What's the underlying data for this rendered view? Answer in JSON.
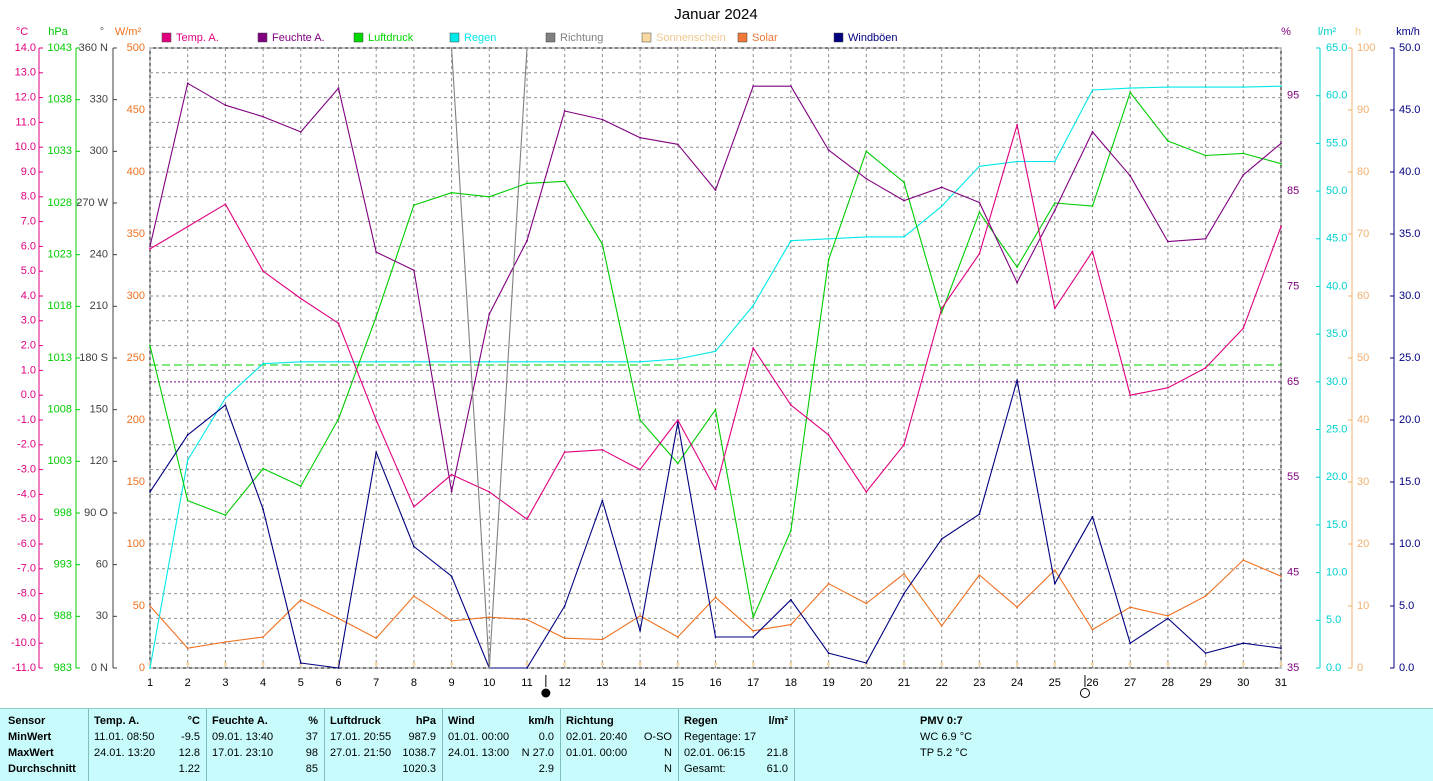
{
  "title": "Januar 2024",
  "units": {
    "temp": "°C",
    "hpa": "hPa",
    "deg": "°",
    "wm2": "W/m²",
    "pct": "%",
    "lm2": "l/m²",
    "h": "h",
    "kmh": "km/h"
  },
  "legend": [
    {
      "label": "Temp. A.",
      "color": "#e0007f"
    },
    {
      "label": "Feuchte A.",
      "color": "#800080"
    },
    {
      "label": "Luftdruck",
      "color": "#00d800"
    },
    {
      "label": "Regen",
      "color": "#00e8e8"
    },
    {
      "label": "Richtung",
      "color": "#808080"
    },
    {
      "label": "Sonnenschein",
      "color": "#f8d8a0"
    },
    {
      "label": "Solar",
      "color": "#f07838"
    },
    {
      "label": "Windböen",
      "color": "#000080"
    }
  ],
  "colors": {
    "temp": "#e0007f",
    "hpa": "#00cc00",
    "deg": "#606060",
    "wm2": "#f07020",
    "pct": "#800080",
    "lm2": "#00d0d0",
    "h": "#f8c880",
    "kmh": "#000080",
    "grid": "#909090"
  },
  "axes": {
    "temp": [
      "14.0",
      "13.0",
      "12.0",
      "11.0",
      "10.0",
      "9.0",
      "8.0",
      "7.0",
      "6.0",
      "5.0",
      "4.0",
      "3.0",
      "2.0",
      "1.0",
      "0.0",
      "-1.0",
      "-2.0",
      "-3.0",
      "-4.0",
      "-5.0",
      "-6.0",
      "-7.0",
      "-8.0",
      "-9.0",
      "-10.0",
      "-11.0"
    ],
    "hpa": [
      "1043",
      "1038",
      "1033",
      "1028",
      "1023",
      "1018",
      "1013",
      "1008",
      "1003",
      "998",
      "993",
      "988",
      "983"
    ],
    "deg": [
      "360 N",
      "330",
      "300",
      "270 W",
      "240",
      "210",
      "180 S",
      "150",
      "120",
      "90 O",
      "60",
      "30",
      "0 N"
    ],
    "wm2": [
      "500",
      "450",
      "400",
      "350",
      "300",
      "250",
      "200",
      "150",
      "100",
      "50",
      "0"
    ],
    "pct": [
      "95",
      "85",
      "75",
      "65",
      "55",
      "45",
      "35"
    ],
    "lm2": [
      "65.0",
      "60.0",
      "55.0",
      "50.0",
      "45.0",
      "40.0",
      "35.0",
      "30.0",
      "25.0",
      "20.0",
      "15.0",
      "10.0",
      "5.0",
      "0.0"
    ],
    "h": [
      "100",
      "90",
      "80",
      "70",
      "60",
      "50",
      "40",
      "30",
      "20",
      "10",
      "0"
    ],
    "kmh": [
      "50.0",
      "45.0",
      "40.0",
      "35.0",
      "30.0",
      "25.0",
      "20.0",
      "15.0",
      "10.0",
      "5.0",
      "0.0"
    ],
    "days": [
      "1",
      "2",
      "3",
      "4",
      "5",
      "6",
      "7",
      "8",
      "9",
      "10",
      "11",
      "12",
      "13",
      "14",
      "15",
      "16",
      "17",
      "18",
      "19",
      "20",
      "21",
      "22",
      "23",
      "24",
      "25",
      "26",
      "27",
      "28",
      "29",
      "30",
      "31"
    ]
  },
  "chart_data": {
    "type": "line",
    "title": "Januar 2024",
    "x": [
      1,
      2,
      3,
      4,
      5,
      6,
      7,
      8,
      9,
      10,
      11,
      12,
      13,
      14,
      15,
      16,
      17,
      18,
      19,
      20,
      21,
      22,
      23,
      24,
      25,
      26,
      27,
      28,
      29,
      30,
      31
    ],
    "series": [
      {
        "name": "Temp. A.",
        "unit": "°C",
        "axis": "temp",
        "values": [
          5.9,
          6.8,
          7.7,
          5.0,
          3.9,
          2.9,
          -1.0,
          -4.5,
          -3.2,
          -3.9,
          -5.0,
          -2.3,
          -2.2,
          -3.0,
          -1.0,
          -3.8,
          1.9,
          -0.4,
          -1.6,
          -3.9,
          -2.0,
          3.5,
          5.7,
          10.9,
          3.5,
          5.8,
          0.0,
          0.3,
          1.1,
          2.7,
          6.8
        ]
      },
      {
        "name": "Feuchte A.",
        "unit": "%",
        "axis": "pct",
        "values": [
          79.2,
          96.3,
          94.0,
          92.8,
          91.2,
          95.8,
          78.6,
          76.7,
          53.5,
          72.1,
          79.8,
          93.4,
          92.5,
          90.6,
          89.9,
          85.1,
          96.0,
          96.0,
          89.3,
          86.3,
          84.0,
          85.4,
          83.8,
          75.4,
          83.0,
          91.2,
          86.6,
          79.7,
          80.0,
          86.7,
          90.0
        ]
      },
      {
        "name": "Luftdruck",
        "unit": "hPa",
        "axis": "hpa",
        "values": [
          1014.2,
          999.2,
          997.8,
          1002.3,
          1000.6,
          1007.1,
          1017.0,
          1027.8,
          1029.0,
          1028.6,
          1029.9,
          1030.1,
          1024.0,
          1007.0,
          1002.8,
          1008.0,
          987.9,
          996.3,
          1022.5,
          1033.0,
          1030.0,
          1017.4,
          1027.1,
          1021.8,
          1028.0,
          1027.7,
          1038.7,
          1034.0,
          1032.6,
          1032.8,
          1031.8
        ]
      },
      {
        "name": "Regen",
        "unit": "l/m²",
        "axis": "lm2",
        "values": [
          0.0,
          21.8,
          28.3,
          31.9,
          32.1,
          32.1,
          32.1,
          32.1,
          32.1,
          32.1,
          32.1,
          32.1,
          32.1,
          32.1,
          32.4,
          33.2,
          38.0,
          44.8,
          45.0,
          45.2,
          45.2,
          48.4,
          52.6,
          53.1,
          53.1,
          60.6,
          60.8,
          60.9,
          60.9,
          60.9,
          61.0
        ]
      },
      {
        "name": "Richtung",
        "unit": "°",
        "axis": "deg",
        "values": [
          null,
          null,
          null,
          null,
          null,
          null,
          null,
          null,
          360,
          0,
          360,
          null,
          null,
          null,
          null,
          null,
          null,
          null,
          null,
          null,
          null,
          null,
          null,
          null,
          null,
          null,
          null,
          null,
          null,
          null,
          null
        ]
      },
      {
        "name": "Solar",
        "unit": "W/m²",
        "axis": "wm2",
        "values": [
          50,
          16,
          21,
          25,
          55,
          40,
          24,
          58,
          38,
          41,
          39,
          24,
          23,
          42,
          25,
          57,
          30,
          35,
          68,
          52,
          76,
          34,
          75,
          49,
          79,
          31,
          49,
          42,
          58,
          87,
          74
        ]
      },
      {
        "name": "Windböen",
        "unit": "km/h",
        "axis": "kmh",
        "values": [
          14.2,
          18.8,
          21.2,
          12.8,
          0.4,
          0.0,
          17.4,
          9.8,
          7.4,
          0.0,
          0.0,
          5.0,
          13.5,
          3.0,
          19.8,
          2.5,
          2.5,
          5.5,
          1.2,
          0.4,
          6.0,
          10.4,
          12.4,
          23.2,
          6.8,
          12.2,
          2.0,
          4.0,
          1.2,
          2.0,
          1.6
        ]
      }
    ],
    "reference_lines": [
      {
        "axis": "temp",
        "value": 1.22
      },
      {
        "axis": "pct",
        "value": 65
      }
    ],
    "markers": {
      "new_moon_day": 11.5,
      "full_moon_day": 25.8
    }
  },
  "stats": {
    "sensor": {
      "title": "Sensor",
      "rows": [
        "MinWert",
        "MaxWert",
        "Durchschnitt"
      ]
    },
    "temp": {
      "title": "Temp. A.",
      "unit": "°C",
      "rows": [
        [
          "11.01.  08:50",
          "-9.5"
        ],
        [
          "24.01.  13:20",
          "12.8"
        ],
        [
          "",
          "1.22"
        ]
      ]
    },
    "hum": {
      "title": "Feuchte A.",
      "unit": "%",
      "rows": [
        [
          "09.01.  13:40",
          "37"
        ],
        [
          "17.01.  23:10",
          "98"
        ],
        [
          "",
          "85"
        ]
      ]
    },
    "press": {
      "title": "Luftdruck",
      "unit": "hPa",
      "rows": [
        [
          "17.01.  20:55",
          "987.9"
        ],
        [
          "27.01.  21:50",
          "1038.7"
        ],
        [
          "",
          "1020.3"
        ]
      ]
    },
    "wind": {
      "title": "Wind",
      "unit": "km/h",
      "rows": [
        [
          "01.01.  00:00",
          "0.0"
        ],
        [
          "24.01.  13:00",
          "N 27.0"
        ],
        [
          "",
          "2.9"
        ]
      ]
    },
    "dir": {
      "title": "Richtung",
      "unit": "",
      "rows": [
        [
          "02.01.  20:40",
          "O-SO"
        ],
        [
          "01.01.  00:00",
          "N"
        ],
        [
          "",
          "N"
        ]
      ]
    },
    "rain": {
      "title": "Regen",
      "unit": "l/m²",
      "rows": [
        [
          "Regentage: 17",
          ""
        ],
        [
          "02.01.  06:15",
          "21.8"
        ],
        [
          "Gesamt:",
          "61.0"
        ]
      ]
    },
    "pmv": {
      "title": "PMV 0:7",
      "rows": [
        "WC 6.9 °C",
        "TP 5.2 °C"
      ]
    }
  }
}
